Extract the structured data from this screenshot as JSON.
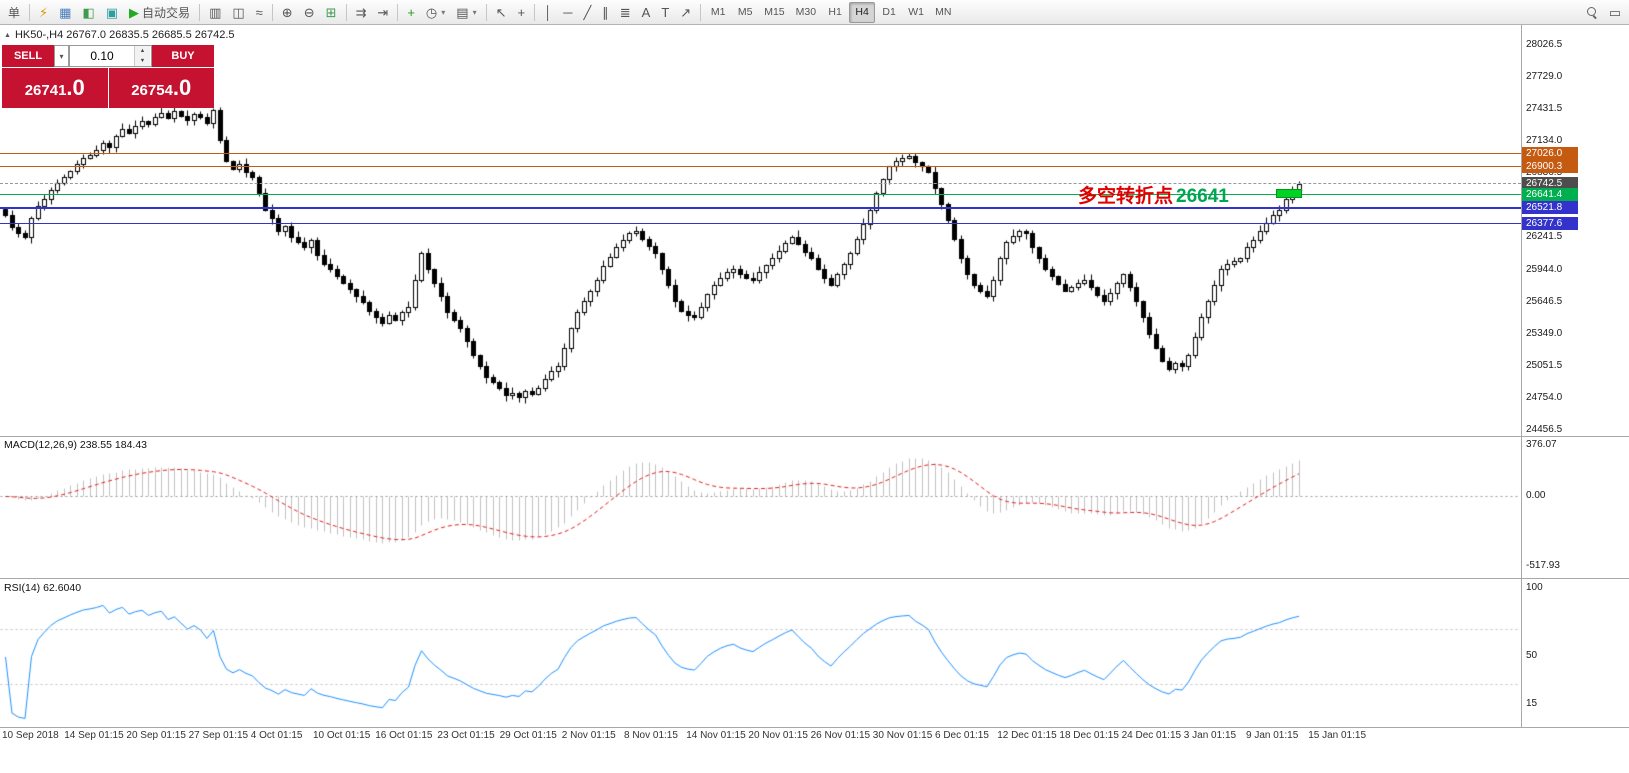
{
  "header": {
    "symbol_info": "HK50-,H4 26767.0 26835.5 26685.5 26742.5"
  },
  "trade_panel": {
    "sell_label": "SELL",
    "buy_label": "BUY",
    "volume": "0.10",
    "sell_price_main": "26741",
    "sell_price_frac": ".0",
    "buy_price_main": "26754",
    "buy_price_frac": ".0"
  },
  "panes": {
    "macd_label": "MACD(12,26,9) 238.55 184.43",
    "rsi_label": "RSI(14) 62.6040"
  },
  "icons": {
    "up_arrow": "▲",
    "down_arrow": "▼",
    "dropdown_arrow": "▾",
    "symbol_marker": "▲"
  },
  "colors": {
    "panel_red": "#c41230",
    "candle_up": "#ffffff",
    "candle_down": "#000000",
    "wick": "#000000",
    "macd_histogram": "#c0c0c0",
    "macd_signal": "#e02020",
    "rsi_line": "#1e90ff",
    "annotation_text": "#e00000",
    "annotation_value": "#00a651"
  },
  "toolbar": {
    "buttons": [
      {
        "name": "new-order-button",
        "text": "单"
      },
      {
        "sep": true
      },
      {
        "name": "market-watch-button",
        "glyph": "⚡",
        "color": "#d89c00"
      },
      {
        "name": "data-window-button",
        "glyph": "▦",
        "color": "#4a7ebb"
      },
      {
        "name": "navigator-button",
        "glyph": "◧",
        "color": "#3f9b4f"
      },
      {
        "name": "terminal-button",
        "glyph": "▣",
        "color": "#2e9fa0"
      },
      {
        "name": "autotrading-button",
        "glyph": "▶",
        "color": "#22aa22",
        "text": "自动交易"
      },
      {
        "sep": true
      },
      {
        "name": "bar-chart-button",
        "glyph": "▥"
      },
      {
        "name": "candlestick-chart-button",
        "glyph": "◫"
      },
      {
        "name": "line-chart-button",
        "glyph": "≈"
      },
      {
        "sep": true
      },
      {
        "name": "zoom-in-button",
        "glyph": "⊕"
      },
      {
        "name": "zoom-out-button",
        "glyph": "⊖"
      },
      {
        "name": "tile-windows-button",
        "glyph": "⊞",
        "color": "#3f9b4f"
      },
      {
        "sep": true
      },
      {
        "name": "auto-scroll-button",
        "glyph": "⇉"
      },
      {
        "name": "chart-shift-button",
        "glyph": "⇥"
      },
      {
        "sep": true
      },
      {
        "name": "indicators-button",
        "glyph": "+",
        "color": "#1f9f1f"
      },
      {
        "name": "periods-button",
        "glyph": "◷",
        "dropdown": true
      },
      {
        "name": "templates-button",
        "glyph": "▤",
        "dropdown": true
      },
      {
        "sep": true
      },
      {
        "name": "cursor-button",
        "glyph": "↖"
      },
      {
        "name": "crosshair-button",
        "glyph": "+"
      },
      {
        "sep": true
      },
      {
        "name": "vertical-line-button",
        "glyph": "│"
      },
      {
        "name": "horizontal-line-button",
        "glyph": "─"
      },
      {
        "name": "trendline-button",
        "glyph": "╱"
      },
      {
        "name": "channel-button",
        "glyph": "∥"
      },
      {
        "name": "fibonacci-button",
        "glyph": "≣"
      },
      {
        "name": "text-button",
        "glyph": "A"
      },
      {
        "name": "text-label-button",
        "glyph": "T"
      },
      {
        "name": "arrow-tools-button",
        "glyph": "↗"
      },
      {
        "sep": true
      },
      {
        "name": "timeframe-m1-button",
        "text": "M1",
        "tf": true
      },
      {
        "name": "timeframe-m5-button",
        "text": "M5",
        "tf": true
      },
      {
        "name": "timeframe-m15-button",
        "text": "M15",
        "tf": true
      },
      {
        "name": "timeframe-m30-button",
        "text": "M30",
        "tf": true
      },
      {
        "name": "timeframe-h1-button",
        "text": "H1",
        "tf": true
      },
      {
        "name": "timeframe-h4-button",
        "text": "H4",
        "tf": true,
        "active": true
      },
      {
        "name": "timeframe-d1-button",
        "text": "D1",
        "tf": true
      },
      {
        "name": "timeframe-w1-button",
        "text": "W1",
        "tf": true
      },
      {
        "name": "timeframe-mn-button",
        "text": "MN",
        "tf": true
      },
      {
        "spacer": true
      },
      {
        "name": "search-button",
        "css": "mag"
      },
      {
        "name": "window-list-button",
        "glyph": "▭"
      }
    ]
  },
  "chart_data": {
    "type": "candlestick",
    "symbol": "HK50-",
    "timeframe": "H4",
    "current_ohlc": {
      "open": 26767.0,
      "high": 26835.5,
      "low": 26685.5,
      "close": 26742.5
    },
    "y_axis_range": [
      24456.5,
      28026.5
    ],
    "price_ticks": [
      "28026.5",
      "27729.0",
      "27431.5",
      "27134.0",
      "26836.5",
      "26539.0",
      "26241.5",
      "25944.0",
      "25646.5",
      "25349.0",
      "25051.5",
      "24754.0",
      "24456.5"
    ],
    "time_ticks": [
      "10 Sep 2018",
      "14 Sep 01:15",
      "20 Sep 01:15",
      "27 Sep 01:15",
      "4 Oct 01:15",
      "10 Oct 01:15",
      "16 Oct 01:15",
      "23 Oct 01:15",
      "29 Oct 01:15",
      "2 Nov 01:15",
      "8 Nov 01:15",
      "14 Nov 01:15",
      "20 Nov 01:15",
      "26 Nov 01:15",
      "30 Nov 01:15",
      "6 Dec 01:15",
      "12 Dec 01:15",
      "18 Dec 01:15",
      "24 Dec 01:15",
      "3 Jan 01:15",
      "9 Jan 01:15",
      "15 Jan 01:15"
    ],
    "levels": [
      {
        "label": "27026.0",
        "price": 27026.0,
        "color": "#c55a11",
        "style": "solid"
      },
      {
        "label": "26900.3",
        "price": 26900.3,
        "color": "#c55a11",
        "style": "solid"
      },
      {
        "label": "26742.5",
        "price": 26742.5,
        "color": "#999999",
        "style": "dashed",
        "tag_color": "#4d4d4d"
      },
      {
        "label": "26641.4",
        "price": 26641.4,
        "color": "#00b050",
        "style": "solid",
        "marker": true
      },
      {
        "label": "26521.8",
        "price": 26521.8,
        "color": "#3333cc",
        "style": "solid",
        "width": 2
      },
      {
        "label": "26377.6",
        "price": 26377.6,
        "color": "#3333cc",
        "style": "solid"
      }
    ],
    "annotation": {
      "text": "多空转折点",
      "value": "26641"
    },
    "indicators": [
      {
        "type": "MACD",
        "params": "12,26,9",
        "current_values": [
          238.55,
          184.43
        ],
        "axis_ticks": [
          "376.07",
          "0.00",
          "-517.93"
        ]
      },
      {
        "type": "RSI",
        "params": "14",
        "current_value": 62.604,
        "axis_ticks": [
          "100",
          "50",
          "15"
        ]
      }
    ],
    "closes": [
      26450,
      26340,
      26280,
      26250,
      26420,
      26530,
      26600,
      26680,
      26750,
      26800,
      26860,
      26920,
      26980,
      27010,
      27050,
      27120,
      27080,
      27180,
      27250,
      27210,
      27280,
      27320,
      27290,
      27360,
      27400,
      27350,
      27410,
      27370,
      27330,
      27390,
      27360,
      27300,
      27420,
      27150,
      26950,
      26880,
      26920,
      26850,
      26800,
      26650,
      26500,
      26420,
      26300,
      26350,
      26250,
      26200,
      26150,
      26220,
      26080,
      26000,
      25950,
      25880,
      25820,
      25760,
      25700,
      25640,
      25560,
      25500,
      25450,
      25520,
      25480,
      25550,
      25600,
      25850,
      26100,
      25950,
      25820,
      25700,
      25550,
      25480,
      25400,
      25280,
      25150,
      25050,
      24950,
      24900,
      24850,
      24780,
      24800,
      24760,
      24820,
      24790,
      24850,
      24930,
      25000,
      25050,
      25220,
      25400,
      25550,
      25650,
      25750,
      25850,
      25980,
      26060,
      26150,
      26220,
      26280,
      26300,
      26230,
      26160,
      26100,
      25950,
      25800,
      25650,
      25560,
      25520,
      25500,
      25600,
      25720,
      25800,
      25870,
      25920,
      25950,
      25900,
      25870,
      25850,
      25920,
      25990,
      26050,
      26120,
      26190,
      26250,
      26180,
      26110,
      26050,
      25950,
      25870,
      25800,
      25900,
      26000,
      26100,
      26230,
      26370,
      26500,
      26650,
      26780,
      26900,
      26950,
      26980,
      27000,
      26940,
      26900,
      26850,
      26700,
      26550,
      26400,
      26230,
      26050,
      25900,
      25800,
      25750,
      25700,
      25850,
      26050,
      26200,
      26260,
      26300,
      26280,
      26150,
      26050,
      25950,
      25880,
      25810,
      25750,
      25780,
      25820,
      25850,
      25780,
      25710,
      25650,
      25730,
      25820,
      25900,
      25780,
      25650,
      25500,
      25350,
      25220,
      25100,
      25020,
      25080,
      25050,
      25150,
      25320,
      25500,
      25650,
      25800,
      25950,
      26000,
      26020,
      26050,
      26150,
      26220,
      26300,
      26380,
      26450,
      26500,
      26600,
      26680,
      26742
    ]
  }
}
